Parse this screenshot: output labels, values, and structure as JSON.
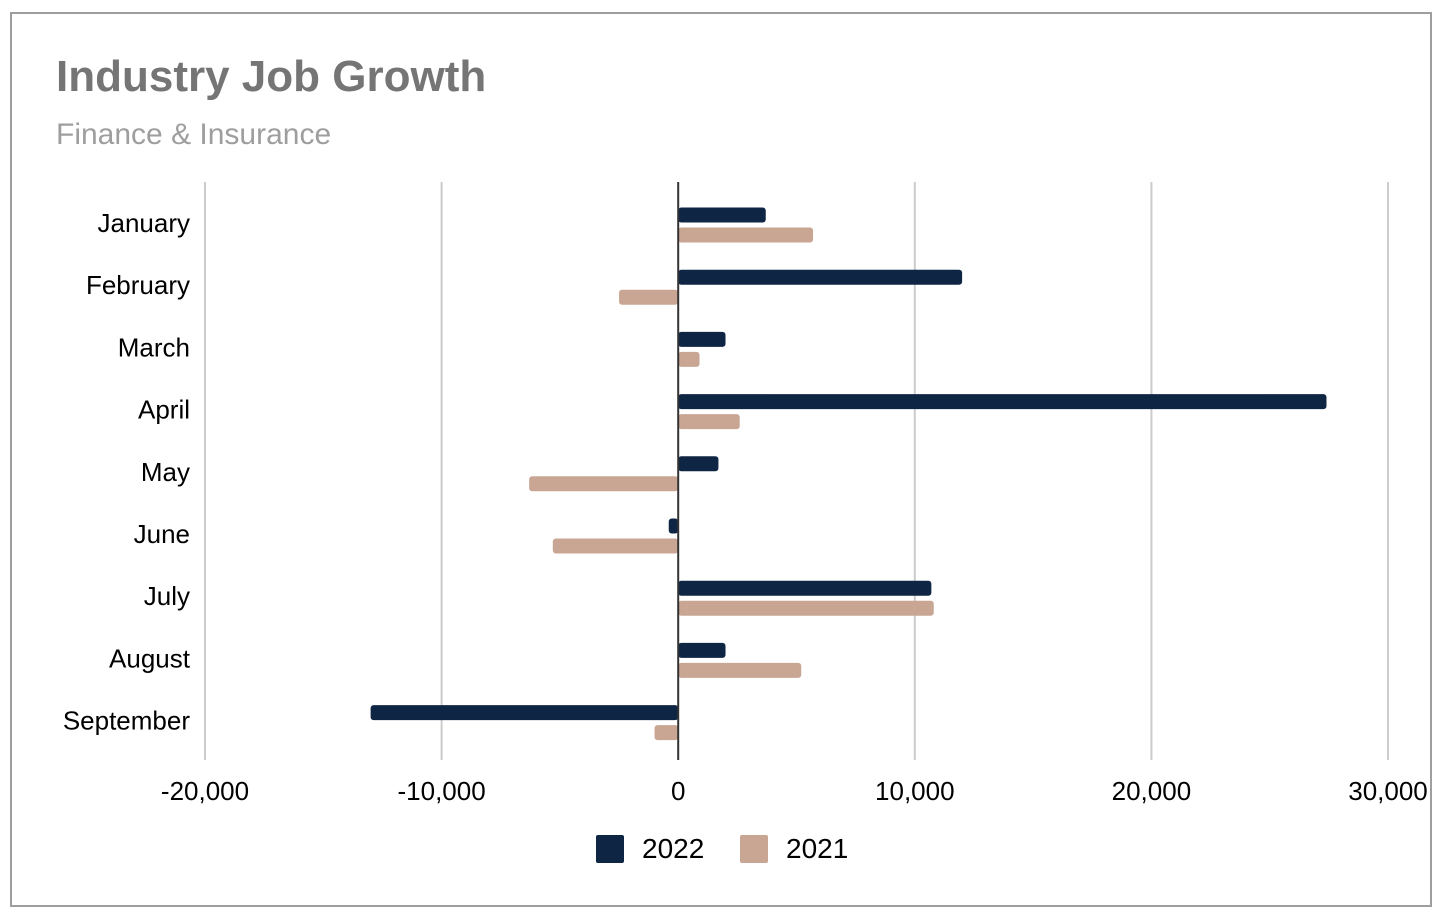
{
  "chart_data": {
    "type": "bar",
    "orientation": "horizontal",
    "title": "Industry Job Growth",
    "subtitle": "Finance & Insurance",
    "categories": [
      "January",
      "February",
      "March",
      "April",
      "May",
      "June",
      "July",
      "August",
      "September"
    ],
    "series": [
      {
        "name": "2022",
        "color": "#0f2544",
        "values": [
          3700,
          12000,
          2000,
          27400,
          1700,
          -400,
          10700,
          2000,
          -13000
        ]
      },
      {
        "name": "2021",
        "color": "#c9a594",
        "values": [
          5700,
          -2500,
          900,
          2600,
          -6300,
          -5300,
          10800,
          5200,
          -1000
        ]
      }
    ],
    "xlim": [
      -20000,
      30000
    ],
    "xticks": [
      -20000,
      -10000,
      0,
      10000,
      20000,
      30000
    ],
    "xtick_labels": [
      "-20,000",
      "-10,000",
      "0",
      "10,000",
      "20,000",
      "30,000"
    ],
    "grid": true,
    "legend_position": "bottom"
  }
}
